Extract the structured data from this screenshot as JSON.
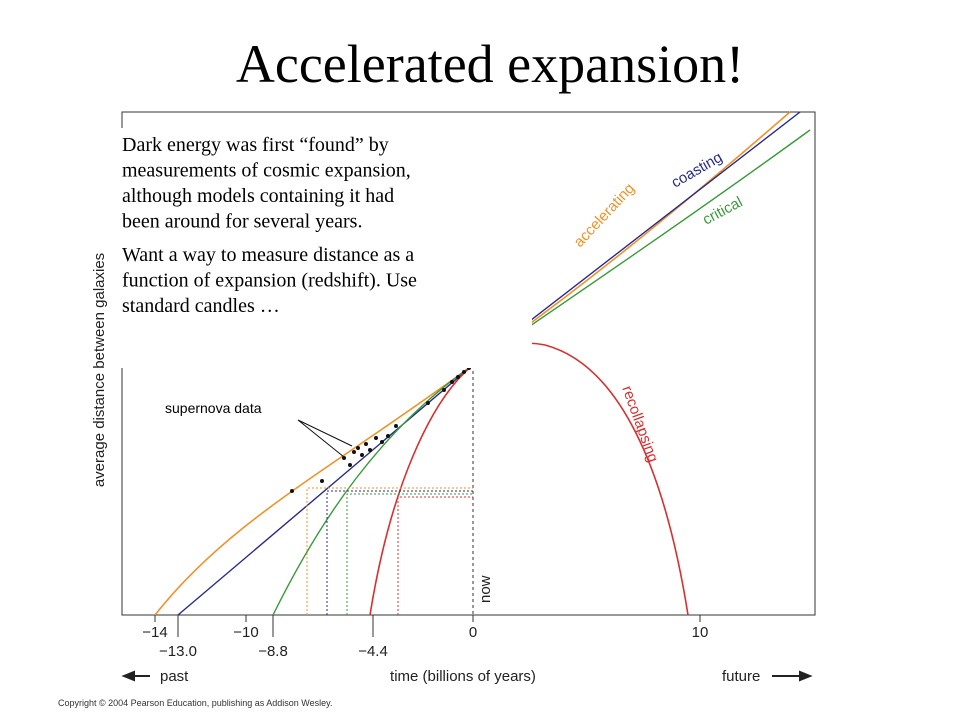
{
  "title": "Accelerated expansion!",
  "text": {
    "paragraphs": [
      [
        "Dark energy was first “found” by",
        "measurements of cosmic expansion,",
        "although models containing it had",
        "been around for several years."
      ],
      [
        "Want a way to measure distance as a",
        "function of expansion (redshift). Use",
        "standard candles …"
      ]
    ]
  },
  "figure": {
    "y_axis_label": "average distance between galaxies",
    "x_axis_label": "time (billions of years)",
    "past": "past",
    "future": "future",
    "now": "now",
    "curve_labels": {
      "accelerating": "accelerating",
      "coasting": "coasting",
      "critical": "critical",
      "recollapsing": "recollapsing"
    },
    "annotation": "supernova data",
    "ticks_top": [
      "−14",
      "−10",
      "0",
      "10"
    ],
    "ticks_bottom": [
      "−13.0",
      "−8.8",
      "−4.4"
    ],
    "copyright": "Copyright © 2004 Pearson Education, publishing as Addison Wesley."
  }
}
